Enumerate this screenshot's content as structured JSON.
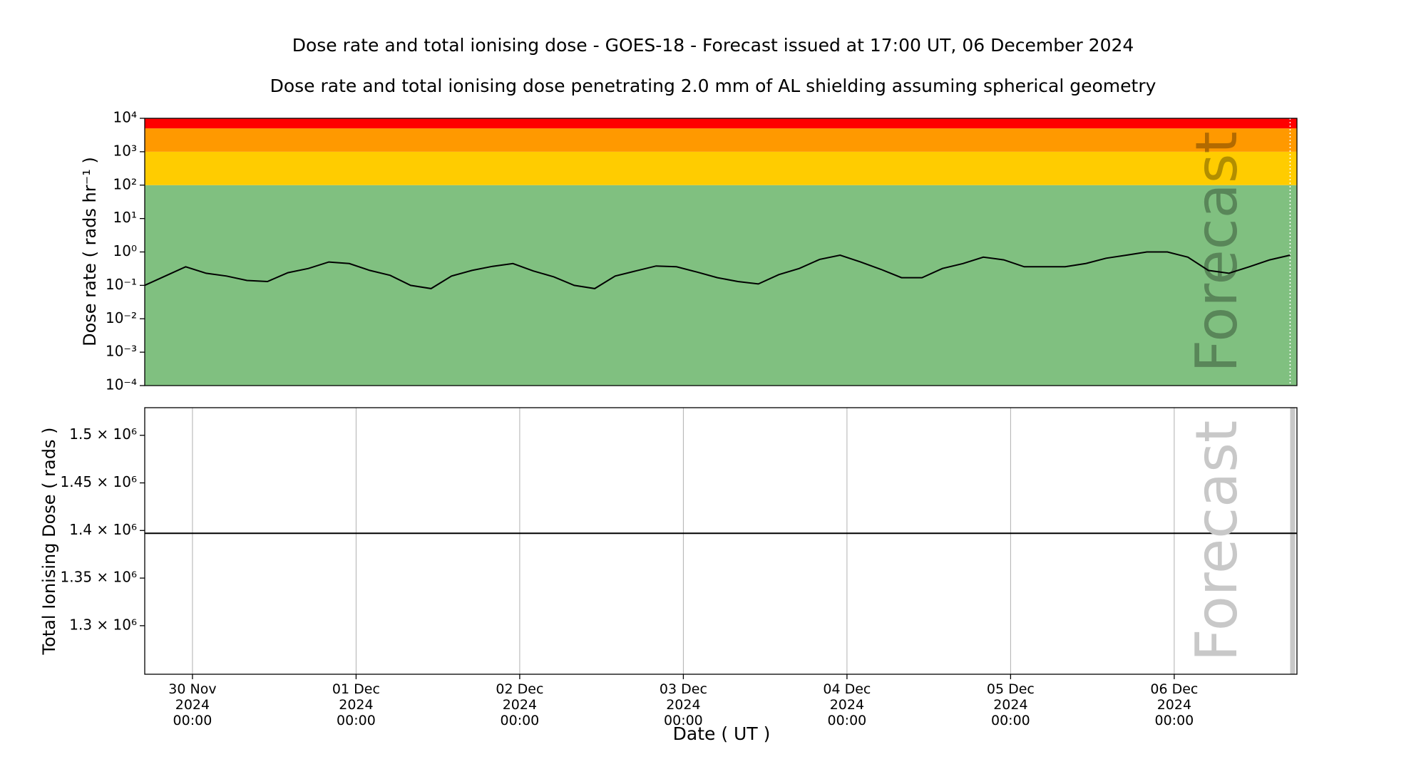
{
  "chart_data": [
    {
      "type": "line",
      "title": "Dose rate and total ionising dose - GOES-18 - Forecast issued at 17:00 UT, 06 December 2024",
      "subtitle": "Dose rate and total ionising dose penetrating 2.0 mm of AL shielding assuming spherical geometry",
      "y_label": "Dose rate ( rads hr⁻¹ )",
      "annotation": "Forecast",
      "forecast_time": "2024-12-06T17:00",
      "log_y": true,
      "ylim": [
        0.0001,
        10000
      ],
      "yticks": [
        {
          "value": 0.0001,
          "label": "10⁻⁴"
        },
        {
          "value": 0.001,
          "label": "10⁻³"
        },
        {
          "value": 0.01,
          "label": "10⁻²"
        },
        {
          "value": 0.1,
          "label": "10⁻¹"
        },
        {
          "value": 1,
          "label": "10⁰"
        },
        {
          "value": 10,
          "label": "10¹"
        },
        {
          "value": 100,
          "label": "10²"
        },
        {
          "value": 1000,
          "label": "10³"
        },
        {
          "value": 10000,
          "label": "10⁴"
        }
      ],
      "xlim": [
        "2024-11-29T17:00",
        "2024-12-06T18:00"
      ],
      "bands": [
        {
          "from": 0.0001,
          "to": 100,
          "color": "#80c080"
        },
        {
          "from": 100,
          "to": 1000,
          "color": "#ffcc00"
        },
        {
          "from": 1000,
          "to": 5000,
          "color": "#ff9900"
        },
        {
          "from": 5000,
          "to": 10000,
          "color": "#ff0000"
        }
      ],
      "x": [
        "2024-11-29T17:00",
        "2024-11-29T20:00",
        "2024-11-29T23:00",
        "2024-11-30T02:00",
        "2024-11-30T05:00",
        "2024-11-30T08:00",
        "2024-11-30T11:00",
        "2024-11-30T14:00",
        "2024-11-30T17:00",
        "2024-11-30T20:00",
        "2024-11-30T23:00",
        "2024-12-01T02:00",
        "2024-12-01T05:00",
        "2024-12-01T08:00",
        "2024-12-01T11:00",
        "2024-12-01T14:00",
        "2024-12-01T17:00",
        "2024-12-01T20:00",
        "2024-12-01T23:00",
        "2024-12-02T02:00",
        "2024-12-02T05:00",
        "2024-12-02T08:00",
        "2024-12-02T11:00",
        "2024-12-02T14:00",
        "2024-12-02T17:00",
        "2024-12-02T20:00",
        "2024-12-02T23:00",
        "2024-12-03T02:00",
        "2024-12-03T05:00",
        "2024-12-03T08:00",
        "2024-12-03T11:00",
        "2024-12-03T14:00",
        "2024-12-03T17:00",
        "2024-12-03T20:00",
        "2024-12-03T23:00",
        "2024-12-04T02:00",
        "2024-12-04T05:00",
        "2024-12-04T08:00",
        "2024-12-04T11:00",
        "2024-12-04T14:00",
        "2024-12-04T17:00",
        "2024-12-04T20:00",
        "2024-12-04T23:00",
        "2024-12-05T02:00",
        "2024-12-05T05:00",
        "2024-12-05T08:00",
        "2024-12-05T11:00",
        "2024-12-05T14:00",
        "2024-12-05T17:00",
        "2024-12-05T20:00",
        "2024-12-05T23:00",
        "2024-12-06T02:00",
        "2024-12-06T05:00",
        "2024-12-06T08:00",
        "2024-12-06T11:00",
        "2024-12-06T14:00",
        "2024-12-06T17:00"
      ],
      "series": [
        {
          "name": "Dose rate",
          "color": "#000000",
          "values": [
            0.1,
            0.19,
            0.36,
            0.23,
            0.19,
            0.14,
            0.13,
            0.24,
            0.32,
            0.5,
            0.45,
            0.28,
            0.2,
            0.1,
            0.08,
            0.19,
            0.28,
            0.37,
            0.45,
            0.27,
            0.18,
            0.1,
            0.08,
            0.19,
            0.27,
            0.38,
            0.36,
            0.25,
            0.17,
            0.13,
            0.11,
            0.21,
            0.32,
            0.6,
            0.8,
            0.5,
            0.3,
            0.17,
            0.17,
            0.32,
            0.45,
            0.7,
            0.58,
            0.36,
            0.36,
            0.36,
            0.45,
            0.65,
            0.8,
            1.0,
            1.0,
            0.7,
            0.28,
            0.23,
            0.36,
            0.58,
            0.8
          ]
        }
      ]
    },
    {
      "type": "line",
      "y_label": "Total Ionising Dose ( rads )",
      "x_label": "Date ( UT )",
      "annotation": "Forecast",
      "forecast_time": "2024-12-06T17:00",
      "grid": true,
      "ylim": [
        1249000,
        1529000
      ],
      "yticks": [
        {
          "value": 1300000,
          "label": "1.3 × 10⁶"
        },
        {
          "value": 1350000,
          "label": "1.35 × 10⁶"
        },
        {
          "value": 1400000,
          "label": "1.4 × 10⁶"
        },
        {
          "value": 1450000,
          "label": "1.45 × 10⁶"
        },
        {
          "value": 1500000,
          "label": "1.5 × 10⁶"
        }
      ],
      "xlim": [
        "2024-11-29T17:00",
        "2024-12-06T18:00"
      ],
      "xticks": [
        {
          "value": "2024-11-30T00:00",
          "label": "30 Nov\n2024\n00:00"
        },
        {
          "value": "2024-12-01T00:00",
          "label": "01 Dec\n2024\n00:00"
        },
        {
          "value": "2024-12-02T00:00",
          "label": "02 Dec\n2024\n00:00"
        },
        {
          "value": "2024-12-03T00:00",
          "label": "03 Dec\n2024\n00:00"
        },
        {
          "value": "2024-12-04T00:00",
          "label": "04 Dec\n2024\n00:00"
        },
        {
          "value": "2024-12-05T00:00",
          "label": "05 Dec\n2024\n00:00"
        },
        {
          "value": "2024-12-06T00:00",
          "label": "06 Dec\n2024\n00:00"
        }
      ],
      "x": [
        "2024-11-29T17:00",
        "2024-12-06T18:00"
      ],
      "series": [
        {
          "name": "Total ionising dose",
          "color": "#000000",
          "values": [
            1397000,
            1397000
          ]
        }
      ]
    }
  ]
}
